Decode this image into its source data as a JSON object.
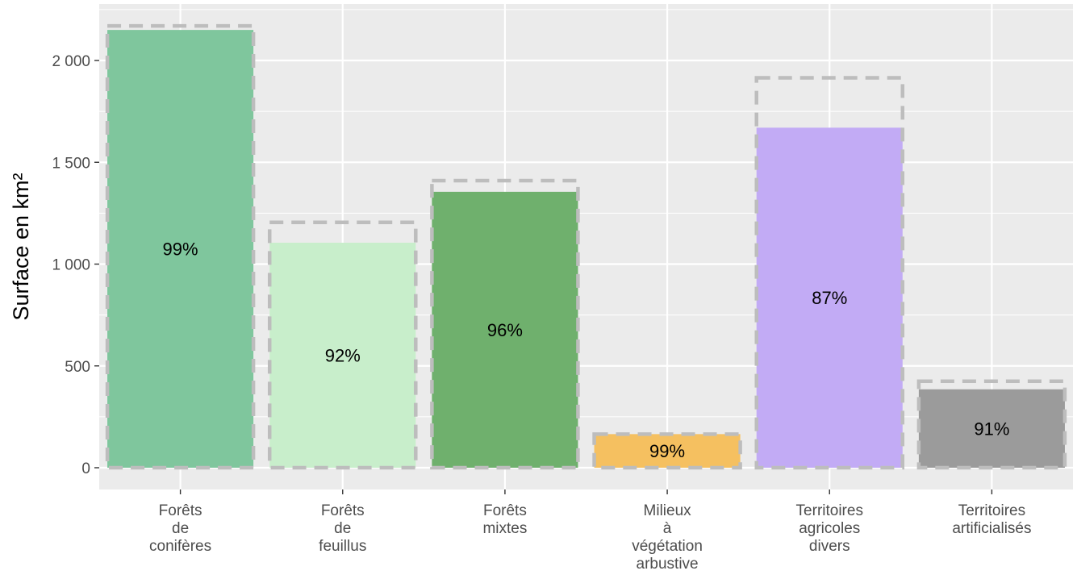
{
  "chart_data": {
    "type": "bar",
    "title": "",
    "xlabel": "",
    "ylabel": "Surface en km²",
    "ylim": [
      0,
      2250
    ],
    "y_ticks": [
      0,
      500,
      1000,
      1500,
      2000
    ],
    "y_tick_labels": [
      "0",
      "500",
      "1 000",
      "1 500",
      "2 000"
    ],
    "grid": true,
    "legend": "none",
    "categories": [
      [
        "Forêts",
        "de",
        "conifères"
      ],
      [
        "Forêts",
        "de",
        "feuillus"
      ],
      [
        "Forêts",
        "mixtes"
      ],
      [
        "Milieux",
        "à",
        "végétation",
        "arbustive"
      ],
      [
        "Territoires",
        "agricoles",
        "divers"
      ],
      [
        "Territoires",
        "artificialisés"
      ]
    ],
    "series": [
      {
        "values": [
          2150,
          1105,
          1355,
          165,
          1670,
          385
        ]
      },
      {
        "values": [
          2170,
          1205,
          1410,
          165,
          1915,
          425
        ]
      }
    ],
    "data_labels": [
      "99%",
      "92%",
      "96%",
      "99%",
      "87%",
      "91%"
    ],
    "colors": [
      "#7fc69d",
      "#c8eecb",
      "#6fb06d",
      "#f5c060",
      "#c2abf5",
      "#9b9b9b"
    ],
    "outline_color": "#bdbdbd",
    "panel_background": "#ebebeb",
    "grid_color": "#ffffff"
  }
}
